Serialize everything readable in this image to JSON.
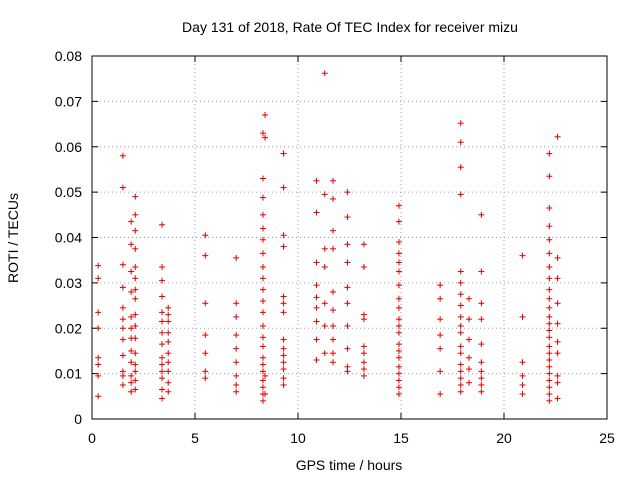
{
  "chart_data": {
    "type": "scatter",
    "title": "Day 131 of 2018, Rate Of TEC Index for receiver mizu",
    "xlabel": "GPS time / hours",
    "ylabel": "ROTI / TECUs",
    "xlim": [
      0,
      25
    ],
    "ylim": [
      0,
      0.08
    ],
    "xticks": [
      0,
      5,
      10,
      15,
      20,
      25
    ],
    "yticks": [
      0,
      0.01,
      0.02,
      0.03,
      0.04,
      0.05,
      0.06,
      0.07,
      0.08
    ],
    "ytick_labels": [
      "0",
      "0.01",
      "0.02",
      "0.03",
      "0.04",
      "0.05",
      "0.06",
      "0.07",
      "0.08"
    ],
    "grid": true,
    "marker": "+",
    "color": "#e00000",
    "series": [
      {
        "name": "ROTI",
        "x": [
          0.3,
          0.3,
          0.3,
          0.3,
          0.3,
          0.3,
          0.3,
          0.3,
          1.5,
          1.5,
          1.5,
          1.5,
          1.5,
          1.5,
          1.5,
          1.5,
          1.5,
          1.5,
          1.5,
          1.5,
          1.9,
          1.9,
          1.9,
          1.9,
          1.9,
          1.9,
          1.9,
          1.9,
          1.9,
          1.9,
          1.9,
          1.9,
          2.1,
          2.1,
          2.1,
          2.1,
          2.1,
          2.1,
          2.1,
          2.1,
          2.1,
          2.1,
          2.1,
          2.1,
          2.1,
          2.1,
          2.1,
          2.1,
          3.4,
          3.4,
          3.4,
          3.4,
          3.4,
          3.4,
          3.4,
          3.4,
          3.4,
          3.4,
          3.4,
          3.4,
          3.4,
          3.4,
          3.7,
          3.7,
          3.7,
          3.7,
          3.7,
          3.7,
          3.7,
          3.7,
          3.7,
          3.7,
          5.5,
          5.5,
          5.5,
          5.5,
          5.5,
          5.5,
          5.5,
          7.0,
          7.0,
          7.0,
          7.0,
          7.0,
          7.0,
          7.0,
          7.0,
          7.0,
          8.3,
          8.3,
          8.3,
          8.3,
          8.3,
          8.3,
          8.3,
          8.3,
          8.3,
          8.3,
          8.3,
          8.3,
          8.3,
          8.3,
          8.3,
          8.3,
          8.3,
          8.3,
          8.3,
          8.3,
          8.3,
          8.3,
          8.4,
          8.4,
          8.4,
          8.4,
          9.3,
          9.3,
          9.3,
          9.3,
          9.3,
          9.3,
          9.3,
          9.3,
          9.3,
          9.3,
          9.3,
          9.3,
          9.3,
          9.3,
          10.9,
          10.9,
          10.9,
          10.9,
          10.9,
          10.9,
          10.9,
          10.9,
          10.9,
          11.3,
          11.3,
          11.3,
          11.3,
          11.3,
          11.3,
          11.3,
          11.7,
          11.7,
          11.7,
          11.7,
          11.7,
          11.7,
          11.7,
          11.7,
          11.7,
          11.7,
          12.4,
          12.4,
          12.4,
          12.4,
          12.4,
          12.4,
          12.4,
          12.4,
          12.4,
          12.4,
          13.2,
          13.2,
          13.2,
          13.2,
          13.2,
          13.2,
          13.2,
          13.2,
          13.2,
          14.9,
          14.9,
          14.9,
          14.9,
          14.9,
          14.9,
          14.9,
          14.9,
          14.9,
          14.9,
          14.9,
          14.9,
          14.9,
          14.9,
          14.9,
          14.9,
          14.9,
          14.9,
          14.9,
          14.9,
          16.9,
          16.9,
          16.9,
          16.9,
          16.9,
          16.9,
          16.9,
          17.9,
          17.9,
          17.9,
          17.9,
          17.9,
          17.9,
          17.9,
          17.9,
          17.9,
          17.9,
          17.9,
          17.9,
          17.9,
          17.9,
          17.9,
          17.9,
          17.9,
          17.9,
          18.3,
          18.3,
          18.3,
          18.3,
          18.3,
          18.3,
          18.9,
          18.9,
          18.9,
          18.9,
          18.9,
          18.9,
          18.9,
          18.9,
          18.9,
          18.9,
          20.9,
          20.9,
          20.9,
          20.9,
          20.9,
          20.9,
          22.2,
          22.2,
          22.2,
          22.2,
          22.2,
          22.2,
          22.2,
          22.2,
          22.2,
          22.2,
          22.2,
          22.2,
          22.2,
          22.2,
          22.2,
          22.2,
          22.2,
          22.2,
          22.2,
          22.2,
          22.2,
          22.2,
          22.2,
          22.2,
          22.6,
          22.6,
          22.6,
          22.6,
          22.6,
          22.6,
          22.6,
          22.6,
          22.6,
          22.6
        ],
        "y": [
          0.005,
          0.0095,
          0.012,
          0.0135,
          0.02,
          0.0235,
          0.031,
          0.0338,
          0.0075,
          0.0095,
          0.0105,
          0.014,
          0.0175,
          0.02,
          0.022,
          0.0245,
          0.029,
          0.034,
          0.051,
          0.058,
          0.006,
          0.008,
          0.0095,
          0.0125,
          0.015,
          0.0178,
          0.02,
          0.0225,
          0.028,
          0.0325,
          0.0385,
          0.0435,
          0.0065,
          0.0085,
          0.0105,
          0.012,
          0.0145,
          0.0178,
          0.0205,
          0.023,
          0.0265,
          0.0285,
          0.031,
          0.0335,
          0.0375,
          0.0415,
          0.045,
          0.049,
          0.0045,
          0.0065,
          0.009,
          0.0105,
          0.012,
          0.0135,
          0.0165,
          0.019,
          0.0215,
          0.0235,
          0.027,
          0.0305,
          0.0335,
          0.0428,
          0.006,
          0.008,
          0.0105,
          0.0125,
          0.0145,
          0.017,
          0.019,
          0.0215,
          0.023,
          0.0245,
          0.009,
          0.0105,
          0.0145,
          0.0185,
          0.0255,
          0.036,
          0.0405,
          0.006,
          0.0075,
          0.0095,
          0.0125,
          0.0155,
          0.0185,
          0.0225,
          0.0255,
          0.0355,
          0.004,
          0.0055,
          0.007,
          0.0085,
          0.0105,
          0.012,
          0.0135,
          0.016,
          0.018,
          0.0205,
          0.0235,
          0.026,
          0.0285,
          0.031,
          0.0335,
          0.0365,
          0.0395,
          0.042,
          0.045,
          0.0488,
          0.053,
          0.063,
          0.0055,
          0.0095,
          0.062,
          0.067,
          0.0075,
          0.009,
          0.011,
          0.0125,
          0.014,
          0.0155,
          0.0175,
          0.0235,
          0.0255,
          0.027,
          0.038,
          0.0405,
          0.051,
          0.0585,
          0.013,
          0.0175,
          0.0215,
          0.0245,
          0.0268,
          0.0295,
          0.0345,
          0.0455,
          0.0525,
          0.0145,
          0.0205,
          0.0255,
          0.0335,
          0.0375,
          0.0495,
          0.0762,
          0.0125,
          0.0145,
          0.0175,
          0.0205,
          0.024,
          0.028,
          0.0375,
          0.0415,
          0.0485,
          0.0525,
          0.0105,
          0.0115,
          0.0155,
          0.0205,
          0.0255,
          0.029,
          0.0345,
          0.0385,
          0.0445,
          0.05,
          0.0095,
          0.011,
          0.0125,
          0.0145,
          0.016,
          0.022,
          0.023,
          0.0335,
          0.0385,
          0.0055,
          0.007,
          0.0085,
          0.01,
          0.0115,
          0.0135,
          0.015,
          0.0165,
          0.019,
          0.0205,
          0.022,
          0.0245,
          0.0265,
          0.0295,
          0.0325,
          0.0345,
          0.0365,
          0.039,
          0.0435,
          0.047,
          0.0055,
          0.0105,
          0.0155,
          0.0185,
          0.022,
          0.0265,
          0.0295,
          0.006,
          0.0075,
          0.009,
          0.0105,
          0.012,
          0.0145,
          0.016,
          0.019,
          0.0205,
          0.0225,
          0.025,
          0.0275,
          0.03,
          0.0325,
          0.0495,
          0.0555,
          0.061,
          0.0652,
          0.008,
          0.011,
          0.0135,
          0.0175,
          0.022,
          0.0265,
          0.006,
          0.0075,
          0.009,
          0.0105,
          0.0125,
          0.0165,
          0.022,
          0.0255,
          0.0325,
          0.045,
          0.0055,
          0.0075,
          0.0095,
          0.0125,
          0.0225,
          0.036,
          0.004,
          0.0055,
          0.007,
          0.0085,
          0.01,
          0.0115,
          0.013,
          0.0145,
          0.016,
          0.018,
          0.0195,
          0.021,
          0.0225,
          0.0245,
          0.0265,
          0.0285,
          0.031,
          0.0335,
          0.0365,
          0.0395,
          0.0425,
          0.0465,
          0.0535,
          0.0585,
          0.0045,
          0.008,
          0.0095,
          0.0145,
          0.017,
          0.021,
          0.0255,
          0.031,
          0.0355,
          0.0622
        ]
      }
    ]
  }
}
